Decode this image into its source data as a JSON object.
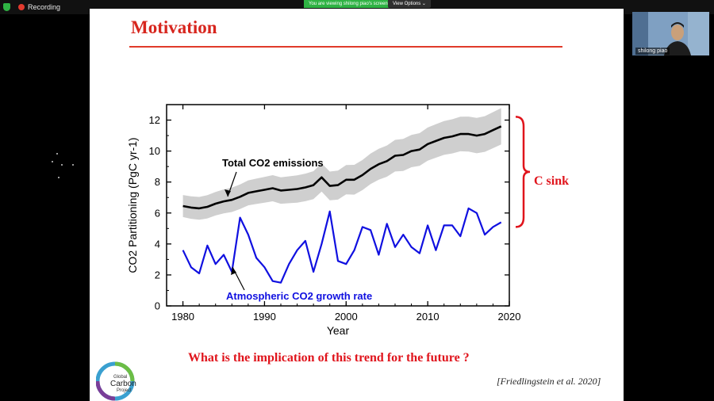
{
  "zoom": {
    "recording_label": "Recording",
    "viewing_banner": "You are viewing shilong piao's screen",
    "view_options_label": "View Options",
    "participant_name": "shilong piao"
  },
  "slide": {
    "title": "Motivation",
    "question": "What is the implication of this trend for the future ?",
    "citation": "[Friedlingstein et al. 2020]",
    "c_sink_label": "C sink",
    "logo_text": [
      "Global",
      "Carbon",
      "Project"
    ]
  },
  "chart_data": {
    "type": "line",
    "xlabel": "Year",
    "ylabel": "CO2 Partitioning (PgC yr-1)",
    "xlim": [
      1978,
      2020
    ],
    "ylim": [
      0,
      13
    ],
    "x_ticks": [
      1980,
      1990,
      2000,
      2010,
      2020
    ],
    "y_ticks": [
      0,
      2,
      4,
      6,
      8,
      10,
      12
    ],
    "x": [
      1980,
      1981,
      1982,
      1983,
      1984,
      1985,
      1986,
      1987,
      1988,
      1989,
      1990,
      1991,
      1992,
      1993,
      1994,
      1995,
      1996,
      1997,
      1998,
      1999,
      2000,
      2001,
      2002,
      2003,
      2004,
      2005,
      2006,
      2007,
      2008,
      2009,
      2010,
      2011,
      2012,
      2013,
      2014,
      2015,
      2016,
      2017,
      2018,
      2019
    ],
    "series": [
      {
        "name": "Total CO2 emissions",
        "color": "#000000",
        "values": [
          6.45,
          6.35,
          6.3,
          6.4,
          6.6,
          6.75,
          6.85,
          7.05,
          7.3,
          7.4,
          7.5,
          7.6,
          7.45,
          7.5,
          7.55,
          7.65,
          7.8,
          8.3,
          7.75,
          7.8,
          8.15,
          8.15,
          8.45,
          8.85,
          9.15,
          9.35,
          9.7,
          9.75,
          10.0,
          10.1,
          10.45,
          10.65,
          10.85,
          10.95,
          11.1,
          11.1,
          11.0,
          11.1,
          11.35,
          11.6
        ],
        "band_halfwidth": 0.95
      },
      {
        "name": "Atmospheric CO2 growth rate",
        "color": "#1010e0",
        "values": [
          3.6,
          2.5,
          2.1,
          3.9,
          2.7,
          3.3,
          2.2,
          5.7,
          4.6,
          3.1,
          2.5,
          1.6,
          1.5,
          2.7,
          3.6,
          4.2,
          2.2,
          4.0,
          6.1,
          2.9,
          2.7,
          3.6,
          5.1,
          4.9,
          3.3,
          5.3,
          3.8,
          4.6,
          3.8,
          3.4,
          5.2,
          3.6,
          5.2,
          5.2,
          4.5,
          6.3,
          6.0,
          4.6,
          5.1,
          5.4
        ]
      }
    ],
    "annotations": [
      "Total CO2 emissions",
      "Atmospheric CO2 growth rate"
    ]
  }
}
